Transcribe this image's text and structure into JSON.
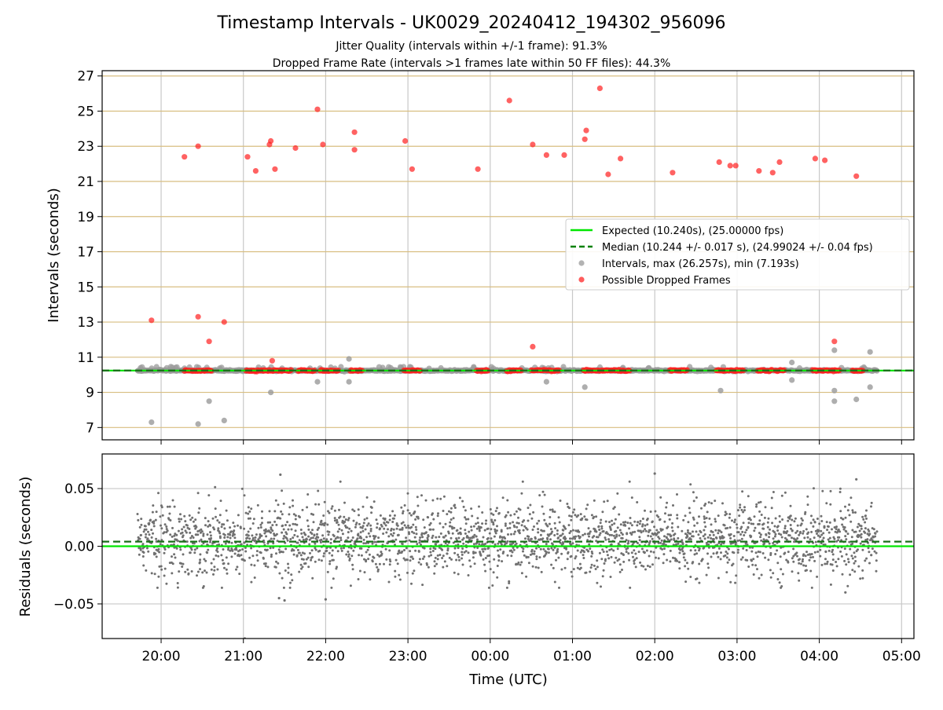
{
  "chart_data": [
    {
      "type": "scatter",
      "panel": "top",
      "title": "Timestamp Intervals - UK0029_20240412_194302_956096",
      "subtitle_1": "Jitter Quality (intervals within +/-1 frame): 91.3%",
      "subtitle_2": "Dropped Frame Rate (intervals >1 frames late within 50 FF files): 44.3%",
      "ylabel": "Intervals (seconds)",
      "ylim": [
        6.3,
        27.3
      ],
      "yticks": [
        7,
        9,
        11,
        13,
        15,
        17,
        19,
        21,
        23,
        25,
        27
      ],
      "grid": "horizontal lines on odd seconds, vertical lines at each hour",
      "legend_position": "center-right",
      "legend": [
        {
          "label": "Expected (10.240s), (25.00000 fps)",
          "style": "solid-line",
          "color": "#00e600"
        },
        {
          "label": "Median (10.244 +/- 0.017 s), (24.99024 +/- 0.04 fps)",
          "style": "dashed-line",
          "color": "#008000"
        },
        {
          "label": "Intervals, max (26.257s), min (7.193s)",
          "style": "marker",
          "color": "#a0a0a0"
        },
        {
          "label": "Possible Dropped Frames",
          "style": "marker",
          "color": "#ff3333"
        }
      ],
      "expected_interval": 10.24,
      "median_interval": 10.244,
      "normal_band": {
        "x_start": "19:43",
        "x_end": "04:42",
        "y": 10.24
      },
      "outliers_gray": [
        {
          "x": "19:53",
          "y": 7.3
        },
        {
          "x": "20:27",
          "y": 7.2
        },
        {
          "x": "20:35",
          "y": 8.5
        },
        {
          "x": "20:46",
          "y": 7.4
        },
        {
          "x": "21:20",
          "y": 9.0
        },
        {
          "x": "21:54",
          "y": 9.6
        },
        {
          "x": "22:17",
          "y": 9.6
        },
        {
          "x": "22:17",
          "y": 10.9
        },
        {
          "x": "00:41",
          "y": 9.6
        },
        {
          "x": "01:09",
          "y": 9.3
        },
        {
          "x": "02:48",
          "y": 9.1
        },
        {
          "x": "03:40",
          "y": 10.7
        },
        {
          "x": "03:40",
          "y": 9.7
        },
        {
          "x": "04:11",
          "y": 11.4
        },
        {
          "x": "04:11",
          "y": 9.1
        },
        {
          "x": "04:11",
          "y": 8.5
        },
        {
          "x": "04:27",
          "y": 8.6
        },
        {
          "x": "04:37",
          "y": 11.3
        },
        {
          "x": "04:37",
          "y": 9.3
        }
      ],
      "dropped_frames": [
        {
          "x": "19:53",
          "y": 13.1
        },
        {
          "x": "20:17",
          "y": 22.4
        },
        {
          "x": "20:27",
          "y": 23.0
        },
        {
          "x": "20:27",
          "y": 13.3
        },
        {
          "x": "20:35",
          "y": 11.9
        },
        {
          "x": "20:46",
          "y": 13.0
        },
        {
          "x": "21:03",
          "y": 22.4
        },
        {
          "x": "21:09",
          "y": 21.6
        },
        {
          "x": "21:19",
          "y": 23.1
        },
        {
          "x": "21:20",
          "y": 23.3
        },
        {
          "x": "21:21",
          "y": 10.8
        },
        {
          "x": "21:23",
          "y": 21.7
        },
        {
          "x": "21:38",
          "y": 22.9
        },
        {
          "x": "21:54",
          "y": 25.1
        },
        {
          "x": "21:58",
          "y": 23.1
        },
        {
          "x": "22:21",
          "y": 23.8
        },
        {
          "x": "22:21",
          "y": 22.8
        },
        {
          "x": "22:58",
          "y": 23.3
        },
        {
          "x": "23:03",
          "y": 21.7
        },
        {
          "x": "23:51",
          "y": 21.7
        },
        {
          "x": "00:14",
          "y": 25.6
        },
        {
          "x": "00:31",
          "y": 23.1
        },
        {
          "x": "00:31",
          "y": 11.6
        },
        {
          "x": "00:41",
          "y": 22.5
        },
        {
          "x": "00:54",
          "y": 22.5
        },
        {
          "x": "01:09",
          "y": 23.4
        },
        {
          "x": "01:10",
          "y": 23.9
        },
        {
          "x": "01:20",
          "y": 26.3
        },
        {
          "x": "01:26",
          "y": 21.4
        },
        {
          "x": "01:35",
          "y": 22.3
        },
        {
          "x": "02:13",
          "y": 21.5
        },
        {
          "x": "02:47",
          "y": 22.1
        },
        {
          "x": "02:55",
          "y": 21.9
        },
        {
          "x": "02:59",
          "y": 21.9
        },
        {
          "x": "03:16",
          "y": 21.6
        },
        {
          "x": "03:26",
          "y": 21.5
        },
        {
          "x": "03:31",
          "y": 22.1
        },
        {
          "x": "03:57",
          "y": 22.3
        },
        {
          "x": "04:04",
          "y": 22.2
        },
        {
          "x": "04:11",
          "y": 11.9
        },
        {
          "x": "04:27",
          "y": 21.3
        }
      ],
      "dropped_frame_clusters_on_baseline": [
        [
          "20:17",
          "20:37"
        ],
        [
          "21:02",
          "21:35"
        ],
        [
          "21:40",
          "21:52"
        ],
        [
          "21:56",
          "22:10"
        ],
        [
          "22:18",
          "22:27"
        ],
        [
          "22:57",
          "23:09"
        ],
        [
          "23:50",
          "23:59"
        ],
        [
          "00:12",
          "00:23"
        ],
        [
          "00:30",
          "00:51"
        ],
        [
          "01:08",
          "01:42"
        ],
        [
          "02:11",
          "02:24"
        ],
        [
          "02:45",
          "03:05"
        ],
        [
          "03:15",
          "03:26"
        ],
        [
          "03:28",
          "03:35"
        ],
        [
          "03:55",
          "04:15"
        ],
        [
          "04:24",
          "04:32"
        ]
      ]
    },
    {
      "type": "scatter",
      "panel": "bottom",
      "ylabel": "Residuals (seconds)",
      "xlabel": "Time (UTC)",
      "ylim": [
        -0.08,
        0.08
      ],
      "yticks": [
        "0.05",
        "0.00",
        "−0.05"
      ],
      "ytick_values": [
        0.05,
        0.0,
        -0.05
      ],
      "xticks": [
        "20:00",
        "21:00",
        "22:00",
        "23:00",
        "00:00",
        "01:00",
        "02:00",
        "03:00",
        "04:00",
        "05:00"
      ],
      "xlim": [
        "19:17",
        "05:09"
      ],
      "zero_line": 0.0,
      "median_offset": 0.004,
      "points_description": "roughly 2600 residuals spread between about -0.05 and 0.06 s, most within -0.025 to 0.035 s",
      "extreme_points": [
        {
          "x": "21:01",
          "y": -0.08
        },
        {
          "x": "21:26",
          "y": -0.045
        },
        {
          "x": "21:30",
          "y": -0.047
        },
        {
          "x": "22:00",
          "y": -0.046
        },
        {
          "x": "04:19",
          "y": -0.04
        },
        {
          "x": "21:27",
          "y": 0.062
        },
        {
          "x": "02:00",
          "y": 0.063
        },
        {
          "x": "04:27",
          "y": 0.058
        }
      ]
    }
  ]
}
